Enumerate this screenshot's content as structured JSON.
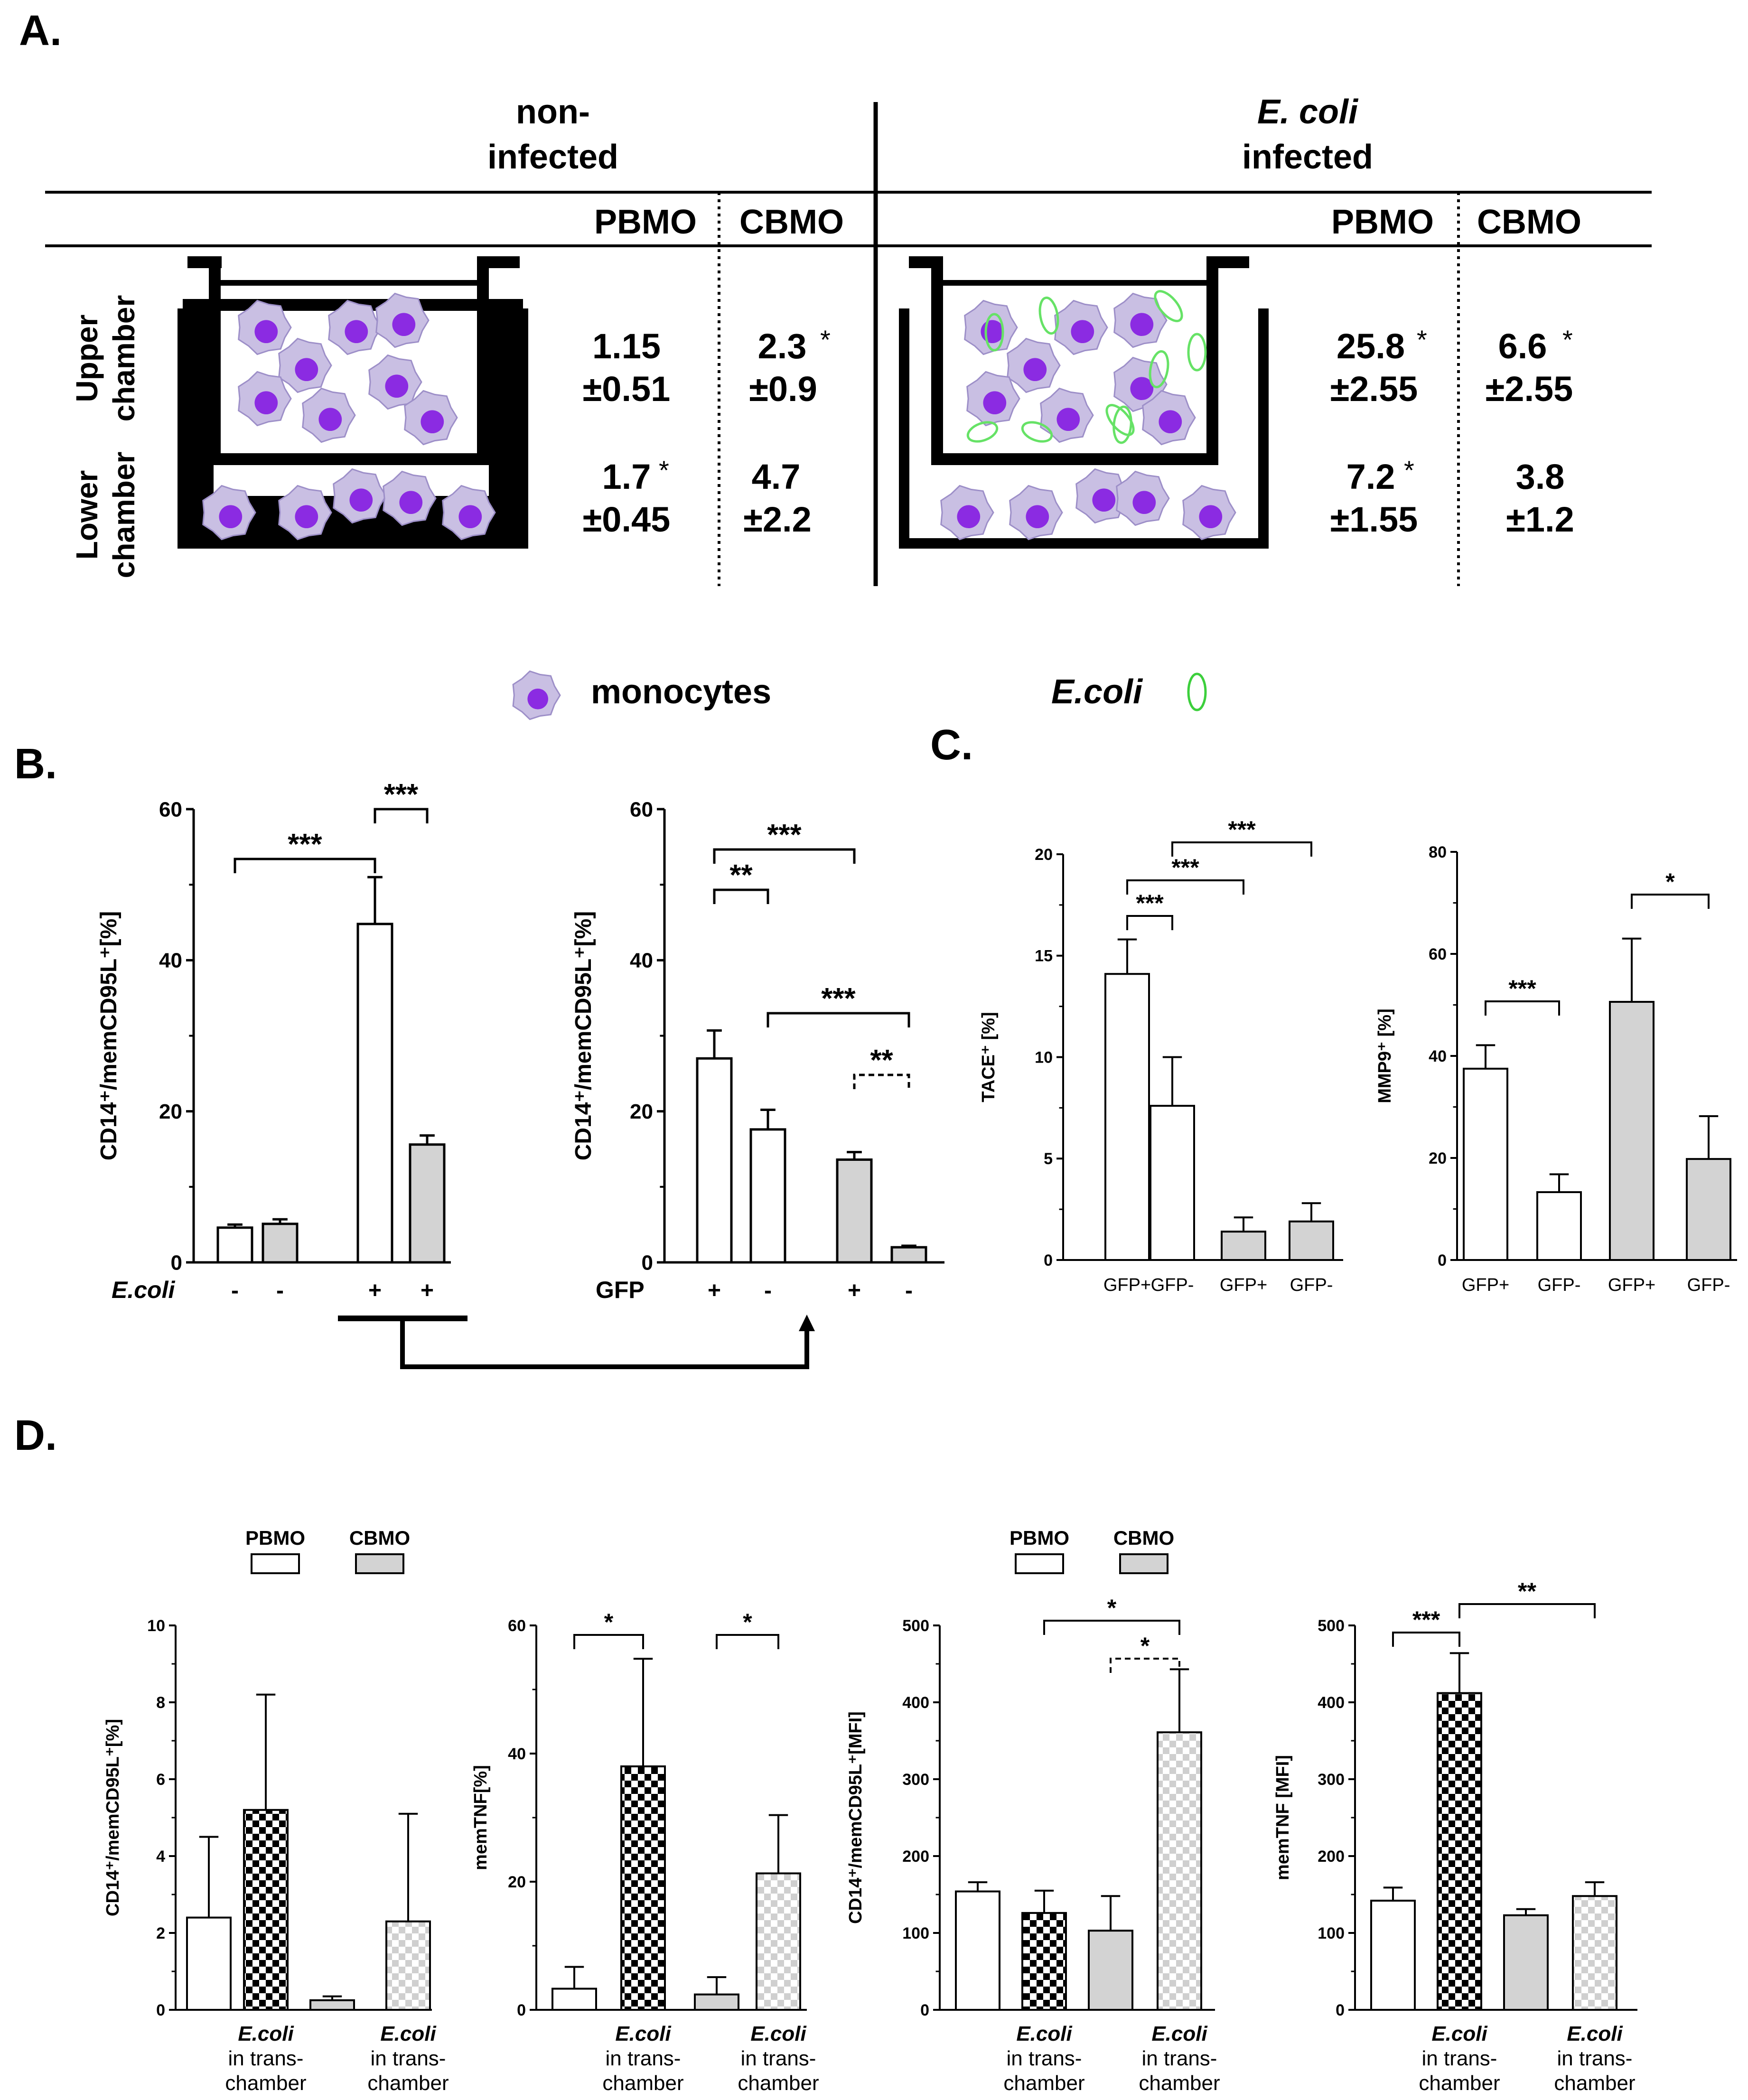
{
  "panel_labels": [
    "A.",
    "B.",
    "C.",
    "D."
  ],
  "panel_a": {
    "groups": [
      {
        "title_lines": [
          "non-",
          "infected"
        ],
        "title_italic_line": -1,
        "col_headers": [
          "PBMO",
          "CBMO"
        ],
        "upper": [
          {
            "value": "1.15",
            "err": "±0.51",
            "star": ""
          },
          {
            "value": "2.3",
            "err": "±0.9",
            "star": "*"
          }
        ],
        "lower": [
          {
            "value": "1.7",
            "err": "±0.45",
            "star": "*"
          },
          {
            "value": "4.7",
            "err": "±2.2",
            "star": ""
          }
        ]
      },
      {
        "title_lines": [
          "E. coli",
          "infected"
        ],
        "title_italic_line": 0,
        "col_headers": [
          "PBMO",
          "CBMO"
        ],
        "upper": [
          {
            "value": "25.8",
            "err": "±2.55",
            "star": "*"
          },
          {
            "value": "6.6",
            "err": "±2.55",
            "star": "*"
          }
        ],
        "lower": [
          {
            "value": "7.2",
            "err": "±1.55",
            "star": "*"
          },
          {
            "value": "3.8",
            "err": "±1.2",
            "star": ""
          }
        ]
      }
    ],
    "row_labels": [
      [
        "Upper",
        "chamber"
      ],
      [
        "Lower",
        "chamber"
      ]
    ],
    "legend": {
      "monocytes": "monocytes",
      "ecoli": "E.coli"
    },
    "colors": {
      "monocyte_body": "#c9bfe3",
      "monocyte_nucleus": "#8b2be2",
      "ecoli": "#66e266"
    }
  },
  "chart_data": [
    {
      "panel": "B",
      "type": "bar",
      "ylabel": "CD14⁺/memCD95L⁺[%]",
      "ylim": [
        0,
        60
      ],
      "yticks": [
        "0",
        "20",
        "40",
        "60"
      ],
      "row_label": "E.coli",
      "categories": [
        "-",
        "-",
        "+",
        "+"
      ],
      "values": [
        4.6,
        5.1,
        44.8,
        15.6
      ],
      "errors": [
        0.4,
        0.6,
        6.2,
        1.2
      ],
      "fills": [
        "white",
        "gray",
        "white",
        "gray"
      ],
      "sig": [
        {
          "a": 0,
          "b": 2,
          "label": "***"
        },
        {
          "a": 2,
          "b": 3,
          "label": "***"
        }
      ]
    },
    {
      "panel": "B",
      "type": "bar",
      "ylabel": "CD14⁺/memCD95L⁺[%]",
      "ylim": [
        0,
        60
      ],
      "yticks": [
        "0",
        "20",
        "40",
        "60"
      ],
      "row_label": "GFP",
      "categories": [
        "+",
        "-",
        "+",
        "-"
      ],
      "values": [
        27.0,
        17.6,
        13.6,
        2.0
      ],
      "errors": [
        3.7,
        2.6,
        1.0,
        0.2
      ],
      "fills": [
        "white",
        "white",
        "gray",
        "gray"
      ],
      "sig": [
        {
          "a": 0,
          "b": 2,
          "label": "***"
        },
        {
          "a": 0,
          "b": 1,
          "label": "**"
        },
        {
          "a": 1,
          "b": 3,
          "label": "***"
        },
        {
          "a": 2,
          "b": 3,
          "label": "**",
          "dashed": true
        }
      ]
    },
    {
      "panel": "C",
      "type": "bar",
      "ylabel": "TACE⁺ [%]",
      "ylim": [
        0,
        20
      ],
      "yticks": [
        "0",
        "5",
        "10",
        "15",
        "20"
      ],
      "row_label": "",
      "categories": [
        "GFP+",
        "GFP-",
        "GFP+",
        "GFP-"
      ],
      "values": [
        14.1,
        7.6,
        1.4,
        1.9
      ],
      "errors": [
        1.7,
        2.4,
        0.7,
        0.9
      ],
      "fills": [
        "white",
        "white",
        "gray",
        "gray"
      ],
      "sig": [
        {
          "a": 1,
          "b": 3,
          "label": "***"
        },
        {
          "a": 0,
          "b": 2,
          "label": "***"
        },
        {
          "a": 0,
          "b": 1,
          "label": "***"
        }
      ]
    },
    {
      "panel": "C",
      "type": "bar",
      "ylabel": "MMP9⁺ [%]",
      "ylim": [
        0,
        80
      ],
      "yticks": [
        "0",
        "20",
        "40",
        "60",
        "80"
      ],
      "row_label": "",
      "categories": [
        "GFP+",
        "GFP-",
        "GFP+",
        "GFP-"
      ],
      "values": [
        37.5,
        13.3,
        50.6,
        19.8
      ],
      "errors": [
        4.6,
        3.5,
        12.4,
        8.4
      ],
      "fills": [
        "white",
        "white",
        "gray",
        "gray"
      ],
      "sig": [
        {
          "a": 0,
          "b": 1,
          "label": "***"
        },
        {
          "a": 2,
          "b": 3,
          "label": "*"
        }
      ]
    },
    {
      "panel": "D",
      "type": "bar",
      "ylabel": "CD14⁺/memCD95L⁺[%]",
      "ylim": [
        0,
        10
      ],
      "yticks": [
        "0",
        "2",
        "4",
        "6",
        "8",
        "10"
      ],
      "row_label": "",
      "categories": [
        "",
        "E.coli|in trans-|chamber",
        "",
        "E.coli|in trans-|chamber"
      ],
      "values": [
        2.4,
        5.2,
        0.25,
        2.3
      ],
      "errors": [
        2.1,
        3.0,
        0.1,
        2.8
      ],
      "fills": [
        "white",
        "check",
        "gray",
        "lightcheck"
      ],
      "sig": [],
      "legend": [
        {
          "label": "PBMO",
          "fill": "white"
        },
        {
          "label": "CBMO",
          "fill": "gray"
        }
      ]
    },
    {
      "panel": "D",
      "type": "bar",
      "ylabel": "memTNF[%]",
      "ylim": [
        0,
        60
      ],
      "yticks": [
        "0",
        "20",
        "40",
        "60"
      ],
      "row_label": "",
      "categories": [
        "",
        "E.coli|in trans-|chamber",
        "",
        "E.coli|in trans-|chamber"
      ],
      "values": [
        3.3,
        38.0,
        2.4,
        21.3
      ],
      "errors": [
        3.4,
        16.8,
        2.7,
        9.1
      ],
      "fills": [
        "white",
        "check",
        "gray",
        "lightcheck"
      ],
      "sig": [
        {
          "a": 0,
          "b": 1,
          "label": "*"
        },
        {
          "a": 2,
          "b": 3,
          "label": "*"
        }
      ]
    },
    {
      "panel": "D",
      "type": "bar",
      "ylabel": "CD14⁺/memCD95L⁺[MFI]",
      "ylim": [
        0,
        500
      ],
      "yticks": [
        "0",
        "100",
        "200",
        "300",
        "400",
        "500"
      ],
      "row_label": "",
      "categories": [
        "",
        "E.coli|in trans-|chamber",
        "",
        "E.coli|in trans-|chamber"
      ],
      "values": [
        154,
        126,
        103,
        361
      ],
      "errors": [
        12,
        29,
        45,
        82
      ],
      "fills": [
        "white",
        "check",
        "gray",
        "lightcheck"
      ],
      "sig": [
        {
          "a": 1,
          "b": 3,
          "label": "*"
        },
        {
          "a": 2,
          "b": 3,
          "label": "*",
          "dashed": true
        }
      ],
      "legend": [
        {
          "label": "PBMO",
          "fill": "white"
        },
        {
          "label": "CBMO",
          "fill": "gray"
        }
      ]
    },
    {
      "panel": "D",
      "type": "bar",
      "ylabel": "memTNF [MFI]",
      "ylim": [
        0,
        500
      ],
      "yticks": [
        "0",
        "100",
        "200",
        "300",
        "400",
        "500"
      ],
      "row_label": "",
      "categories": [
        "",
        "E.coli|in trans-|chamber",
        "",
        "E.coli|in trans-|chamber"
      ],
      "values": [
        142,
        412,
        123,
        148
      ],
      "errors": [
        17,
        52,
        8,
        18
      ],
      "fills": [
        "white",
        "check",
        "gray",
        "lightcheck"
      ],
      "sig": [
        {
          "a": 0,
          "b": 1,
          "label": "***"
        },
        {
          "a": 1,
          "b": 3,
          "label": "**"
        }
      ]
    }
  ]
}
